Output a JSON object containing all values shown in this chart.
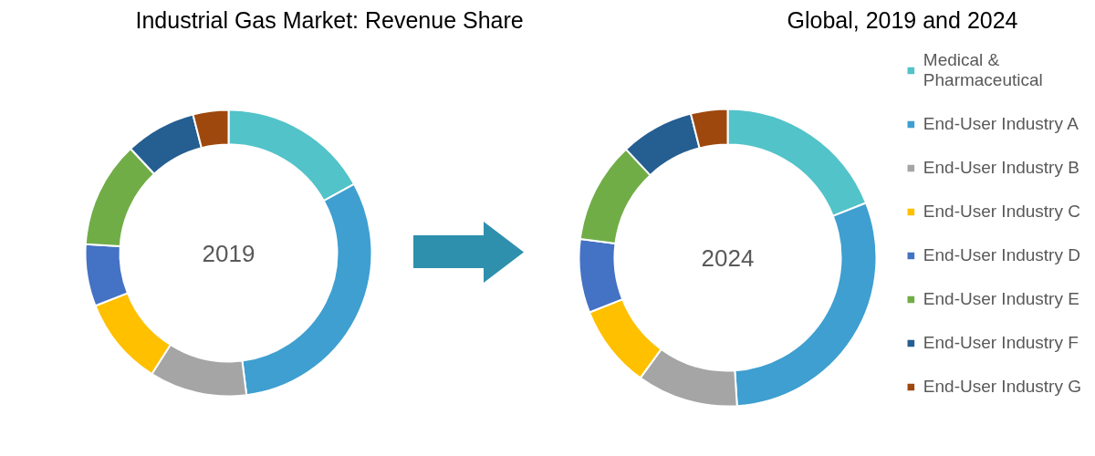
{
  "chart_data": [
    {
      "type": "donut",
      "title": "Industrial Gas Market: Revenue Share",
      "categories": [
        null,
        null,
        null,
        null,
        null,
        null,
        null,
        null
      ],
      "values": [
        17,
        31,
        11,
        10,
        7,
        12,
        8,
        4
      ],
      "colors": [
        "#52c3c9",
        "#3e9fd0",
        "#a5a5a5",
        "#ffc000",
        "#4472c4",
        "#70ad47",
        "#255e91",
        "#9e480e"
      ],
      "annotations": [
        "2019"
      ]
    },
    {
      "type": "donut",
      "title": "Global, 2019 and 2024",
      "categories": [
        "Medical & Pharmaceutical",
        "End-User Industry A",
        "End-User Industry B",
        "End-User Industry C",
        "End-User Industry D",
        "End-User Industry E",
        "End-User Industry F",
        "End-User Industry G"
      ],
      "values": [
        19,
        30,
        11,
        9,
        8,
        11,
        8,
        4
      ],
      "colors": [
        "#52c3c9",
        "#3e9fd0",
        "#a5a5a5",
        "#ffc000",
        "#4472c4",
        "#70ad47",
        "#255e91",
        "#9e480e"
      ],
      "annotations": [
        "2024"
      ],
      "legend": "right"
    }
  ]
}
